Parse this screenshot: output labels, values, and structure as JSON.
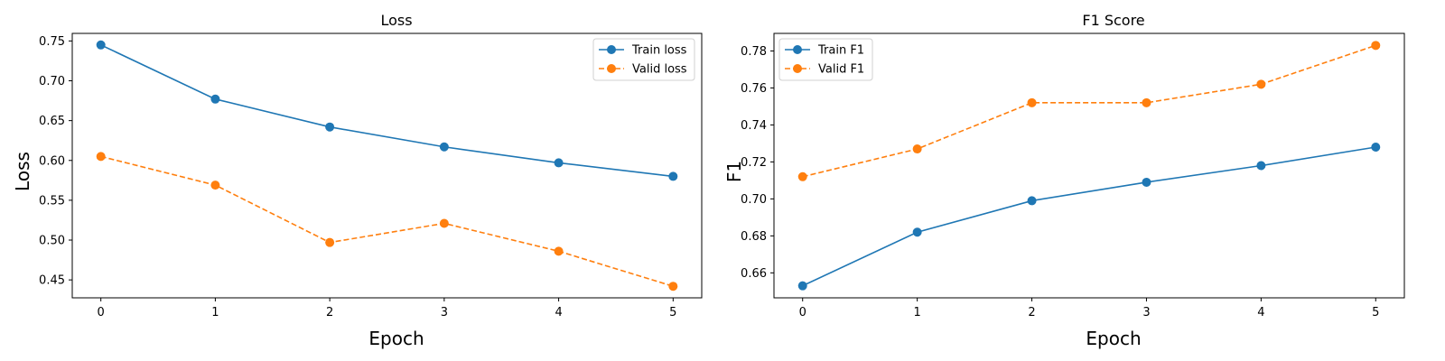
{
  "chart_data": [
    {
      "type": "line",
      "title": "Loss",
      "xlabel": "Epoch",
      "ylabel": "Loss",
      "x": [
        0,
        1,
        2,
        3,
        4,
        5
      ],
      "xticks": [
        "0",
        "1",
        "2",
        "3",
        "4",
        "5"
      ],
      "yticks": [
        "0.45",
        "0.50",
        "0.55",
        "0.60",
        "0.65",
        "0.70",
        "0.75"
      ],
      "xlim": [
        -0.25,
        5.25
      ],
      "ylim": [
        0.4275,
        0.7595
      ],
      "grid": false,
      "legend_position": "upper right",
      "series": [
        {
          "name": "Train loss",
          "color": "#1f77b4",
          "linestyle": "solid",
          "marker": "circle",
          "values": [
            0.745,
            0.677,
            0.642,
            0.617,
            0.597,
            0.58
          ]
        },
        {
          "name": "Valid loss",
          "color": "#ff7f0e",
          "linestyle": "dashed",
          "marker": "circle",
          "values": [
            0.605,
            0.569,
            0.497,
            0.521,
            0.486,
            0.442
          ]
        }
      ]
    },
    {
      "type": "line",
      "title": "F1 Score",
      "xlabel": "Epoch",
      "ylabel": "F1",
      "x": [
        0,
        1,
        2,
        3,
        4,
        5
      ],
      "xticks": [
        "0",
        "1",
        "2",
        "3",
        "4",
        "5"
      ],
      "yticks": [
        "0.66",
        "0.68",
        "0.70",
        "0.72",
        "0.74",
        "0.76",
        "0.78"
      ],
      "xlim": [
        -0.25,
        5.25
      ],
      "ylim": [
        0.6465,
        0.7895
      ],
      "grid": false,
      "legend_position": "upper left",
      "series": [
        {
          "name": "Train F1",
          "color": "#1f77b4",
          "linestyle": "solid",
          "marker": "circle",
          "values": [
            0.653,
            0.682,
            0.699,
            0.709,
            0.718,
            0.728
          ]
        },
        {
          "name": "Valid F1",
          "color": "#ff7f0e",
          "linestyle": "dashed",
          "marker": "circle",
          "values": [
            0.712,
            0.727,
            0.752,
            0.752,
            0.762,
            0.783
          ]
        }
      ]
    }
  ]
}
